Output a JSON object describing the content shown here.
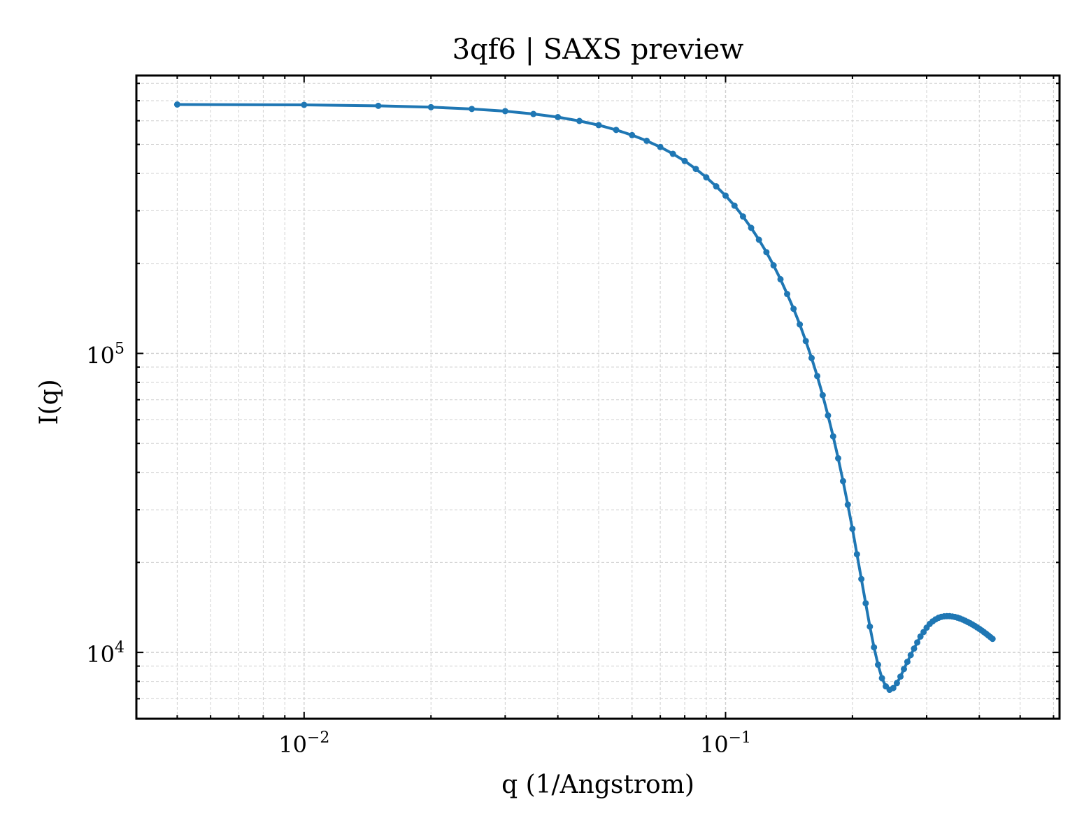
{
  "chart_data": {
    "type": "line",
    "title": "3qf6 | SAXS preview",
    "xlabel": "q (1/Angstrom)",
    "ylabel": "I(q)",
    "xscale": "log",
    "yscale": "log",
    "xlim": [
      0.004,
      0.62
    ],
    "ylim": [
      6000,
      850000
    ],
    "grid": true,
    "legend": "none",
    "x_ticks": [
      {
        "value": 0.01,
        "base": "10",
        "exp": "−2"
      },
      {
        "value": 0.1,
        "base": "10",
        "exp": "−1"
      }
    ],
    "y_ticks": [
      {
        "value": 10000,
        "base": "10",
        "exp": "4"
      },
      {
        "value": 100000,
        "base": "10",
        "exp": "5"
      }
    ],
    "series": [
      {
        "color": "#1f77b4",
        "marker": "circle",
        "points": [
          [
            0.005,
            680000
          ],
          [
            0.01,
            678000
          ],
          [
            0.015,
            673000
          ],
          [
            0.02,
            666000
          ],
          [
            0.025,
            657000
          ],
          [
            0.03,
            646000
          ],
          [
            0.035,
            632000
          ],
          [
            0.04,
            617000
          ],
          [
            0.045,
            599000
          ],
          [
            0.05,
            580000
          ],
          [
            0.055,
            559000
          ],
          [
            0.06,
            537000
          ],
          [
            0.065,
            514000
          ],
          [
            0.07,
            490000
          ],
          [
            0.075,
            465000
          ],
          [
            0.08,
            440000
          ],
          [
            0.085,
            414000
          ],
          [
            0.09,
            388000
          ],
          [
            0.095,
            362000
          ],
          [
            0.1,
            337000
          ],
          [
            0.105,
            312000
          ],
          [
            0.11,
            287000
          ],
          [
            0.115,
            263000
          ],
          [
            0.12,
            240000
          ],
          [
            0.125,
            218000
          ],
          [
            0.13,
            197000
          ],
          [
            0.135,
            177000
          ],
          [
            0.14,
            158000
          ],
          [
            0.145,
            141000
          ],
          [
            0.15,
            125000
          ],
          [
            0.155,
            110000
          ],
          [
            0.16,
            96500
          ],
          [
            0.165,
            84000
          ],
          [
            0.17,
            72500
          ],
          [
            0.175,
            62000
          ],
          [
            0.18,
            52800
          ],
          [
            0.185,
            44600
          ],
          [
            0.19,
            37400
          ],
          [
            0.195,
            31200
          ],
          [
            0.2,
            25900
          ],
          [
            0.205,
            21300
          ],
          [
            0.21,
            17600
          ],
          [
            0.215,
            14600
          ],
          [
            0.22,
            12200
          ],
          [
            0.225,
            10400
          ],
          [
            0.23,
            9100
          ],
          [
            0.235,
            8200
          ],
          [
            0.24,
            7700
          ],
          [
            0.245,
            7500
          ],
          [
            0.25,
            7600
          ],
          [
            0.255,
            7900
          ],
          [
            0.26,
            8300
          ],
          [
            0.265,
            8800
          ],
          [
            0.27,
            9300
          ],
          [
            0.275,
            9800
          ],
          [
            0.28,
            10300
          ],
          [
            0.285,
            10800
          ],
          [
            0.29,
            11300
          ],
          [
            0.295,
            11700
          ],
          [
            0.3,
            12100
          ],
          [
            0.305,
            12450
          ],
          [
            0.31,
            12700
          ],
          [
            0.315,
            12900
          ],
          [
            0.32,
            13050
          ],
          [
            0.325,
            13150
          ],
          [
            0.33,
            13200
          ],
          [
            0.335,
            13220
          ],
          [
            0.34,
            13220
          ],
          [
            0.345,
            13190
          ],
          [
            0.35,
            13140
          ],
          [
            0.355,
            13070
          ],
          [
            0.36,
            12980
          ],
          [
            0.365,
            12880
          ],
          [
            0.37,
            12770
          ],
          [
            0.375,
            12650
          ],
          [
            0.38,
            12530
          ],
          [
            0.385,
            12400
          ],
          [
            0.39,
            12270
          ],
          [
            0.395,
            12130
          ],
          [
            0.4,
            11990
          ],
          [
            0.405,
            11850
          ],
          [
            0.41,
            11700
          ],
          [
            0.415,
            11550
          ],
          [
            0.42,
            11400
          ],
          [
            0.425,
            11250
          ],
          [
            0.43,
            11100
          ]
        ]
      }
    ]
  }
}
